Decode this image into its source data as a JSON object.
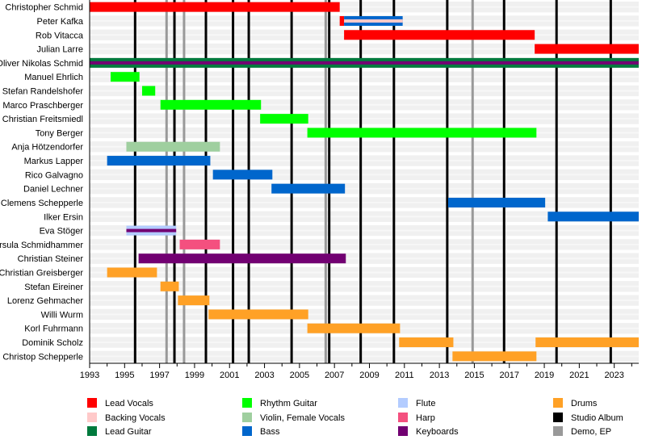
{
  "chart_data": {
    "type": "timeline",
    "xlim": [
      1993,
      2024.4
    ],
    "x_ticks": [
      "1993",
      "1995",
      "1997",
      "1999",
      "2001",
      "2003",
      "2005",
      "2007",
      "2009",
      "2011",
      "2013",
      "2015",
      "2017",
      "2019",
      "2021",
      "2023"
    ],
    "grid": false,
    "legend_position": "bottom",
    "roles": {
      "lead_vocals": {
        "label": "Lead Vocals",
        "color": "#ff0000"
      },
      "backing_vocals": {
        "label": "Backing Vocals",
        "color": "#ffc9c9"
      },
      "lead_guitar": {
        "label": "Lead Guitar",
        "color": "#007a3d"
      },
      "rhythm_guitar": {
        "label": "Rhythm Guitar",
        "color": "#00ff00"
      },
      "violin": {
        "label": "Violin, Female Vocals",
        "color": "#9fcf9f"
      },
      "bass": {
        "label": "Bass",
        "color": "#0066cc"
      },
      "flute": {
        "label": "Flute",
        "color": "#b3ccff"
      },
      "harp": {
        "label": "Harp",
        "color": "#f4507f"
      },
      "keyboards": {
        "label": "Keyboards",
        "color": "#720072"
      },
      "drums": {
        "label": "Drums",
        "color": "#ffa126"
      },
      "studio": {
        "label": "Studio Album",
        "color": "#000000"
      },
      "demo": {
        "label": "Demo, EP",
        "color": "#999999"
      }
    },
    "legend_order": [
      [
        "lead_vocals",
        "backing_vocals",
        "lead_guitar"
      ],
      [
        "rhythm_guitar",
        "violin",
        "bass"
      ],
      [
        "flute",
        "harp",
        "keyboards"
      ],
      [
        "drums",
        "studio",
        "demo"
      ]
    ],
    "members": [
      {
        "name": "Christopher Schmid",
        "bars": [
          {
            "role": "lead_vocals",
            "start": 1993,
            "end": 2007.3
          }
        ]
      },
      {
        "name": "Peter Kafka",
        "bars": [
          {
            "role": "lead_vocals",
            "start": 2007.3,
            "end": 2007.55
          },
          {
            "role": "bass",
            "inner": "backing_vocals",
            "start": 2007.55,
            "end": 2010.9
          }
        ]
      },
      {
        "name": "Rob Vitacca",
        "bars": [
          {
            "role": "lead_vocals",
            "start": 2007.55,
            "end": 2018.45
          }
        ]
      },
      {
        "name": "Julian Larre",
        "bars": [
          {
            "role": "lead_vocals",
            "start": 2018.45,
            "end": 2024.4
          }
        ]
      },
      {
        "name": "Oliver Nikolas Schmid",
        "bars": [
          {
            "role": "lead_guitar",
            "inner": "keyboards",
            "start": 1993,
            "end": 2024.4
          }
        ]
      },
      {
        "name": "Manuel Ehrlich",
        "bars": [
          {
            "role": "rhythm_guitar",
            "start": 1994.2,
            "end": 1995.85
          }
        ]
      },
      {
        "name": "Stefan Randelshofer",
        "bars": [
          {
            "role": "rhythm_guitar",
            "start": 1996.0,
            "end": 1996.75
          }
        ]
      },
      {
        "name": "Marco Praschberger",
        "bars": [
          {
            "role": "rhythm_guitar",
            "start": 1997.05,
            "end": 2002.8
          }
        ]
      },
      {
        "name": "Christian Freitsmiedl",
        "bars": [
          {
            "role": "rhythm_guitar",
            "start": 2002.75,
            "end": 2005.5
          }
        ]
      },
      {
        "name": "Tony Berger",
        "bars": [
          {
            "role": "rhythm_guitar",
            "start": 2005.45,
            "end": 2018.55
          }
        ]
      },
      {
        "name": "Anja Hötzendorfer",
        "bars": [
          {
            "role": "violin",
            "start": 1995.1,
            "end": 2000.45
          }
        ]
      },
      {
        "name": "Markus Lapper",
        "bars": [
          {
            "role": "bass",
            "start": 1994.0,
            "end": 1999.9
          }
        ]
      },
      {
        "name": "Rico Galvagno",
        "bars": [
          {
            "role": "bass",
            "start": 2000.05,
            "end": 2003.45
          }
        ]
      },
      {
        "name": "Daniel Lechner",
        "bars": [
          {
            "role": "bass",
            "start": 2003.4,
            "end": 2007.6
          }
        ]
      },
      {
        "name": "Clemens Schepperle",
        "bars": [
          {
            "role": "bass",
            "start": 2013.5,
            "end": 2019.05
          }
        ]
      },
      {
        "name": "Ilker Ersin",
        "bars": [
          {
            "role": "bass",
            "start": 2019.2,
            "end": 2024.4
          }
        ]
      },
      {
        "name": "Eva Stöger",
        "bars": [
          {
            "role": "flute",
            "inner": "keyboards",
            "start": 1995.1,
            "end": 1997.95
          }
        ]
      },
      {
        "name": "Ursula Schmidhammer",
        "bars": [
          {
            "role": "harp",
            "start": 1998.15,
            "end": 2000.45
          }
        ]
      },
      {
        "name": "Christian Steiner",
        "bars": [
          {
            "role": "keyboards",
            "start": 1995.8,
            "end": 2007.65
          }
        ]
      },
      {
        "name": "Christian Greisberger",
        "bars": [
          {
            "role": "drums",
            "start": 1994.0,
            "end": 1996.85
          }
        ]
      },
      {
        "name": "Stefan Eireiner",
        "bars": [
          {
            "role": "drums",
            "start": 1997.05,
            "end": 1998.1
          }
        ]
      },
      {
        "name": "Lorenz Gehmacher",
        "bars": [
          {
            "role": "drums",
            "start": 1998.05,
            "end": 1999.85
          }
        ]
      },
      {
        "name": "Willi Wurm",
        "bars": [
          {
            "role": "drums",
            "start": 1999.8,
            "end": 2005.5
          }
        ]
      },
      {
        "name": "Korl Fuhrmann",
        "bars": [
          {
            "role": "drums",
            "start": 2005.45,
            "end": 2010.75
          }
        ]
      },
      {
        "name": "Dominik Scholz",
        "bars": [
          {
            "role": "drums",
            "start": 2010.7,
            "end": 2013.8
          },
          {
            "role": "drums",
            "start": 2018.5,
            "end": 2024.4
          }
        ]
      },
      {
        "name": "Christop Schepperle",
        "bars": [
          {
            "role": "drums",
            "start": 2013.75,
            "end": 2018.55
          }
        ]
      }
    ],
    "studio_albums": [
      1995.6,
      1997.85,
      1999.65,
      2001.2,
      2002.1,
      2004.55,
      2006.7,
      2008.5,
      2010.4,
      2013.45,
      2016.7,
      2019.7,
      2022.8
    ],
    "demos_eps": [
      1997.4,
      1998.4,
      2006.5,
      2014.9
    ]
  }
}
